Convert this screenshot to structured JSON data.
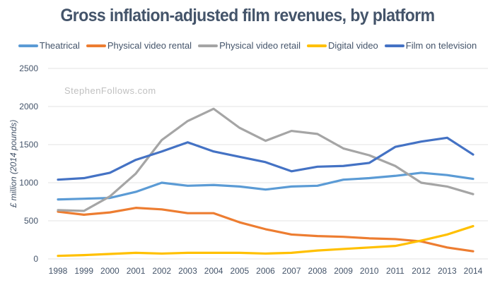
{
  "chart_data": {
    "type": "line",
    "title": "Gross inflation-adjusted film revenues, by platform",
    "xlabel": "",
    "ylabel": "£ million (2014 pounds)",
    "watermark": "StephenFollows.com",
    "ylim": [
      0,
      2500
    ],
    "yticks": [
      0,
      500,
      1000,
      1500,
      2000,
      2500
    ],
    "grid": true,
    "legend_position": "top",
    "x": [
      "1998",
      "1999",
      "2000",
      "2001",
      "2002",
      "2003",
      "2004",
      "2005",
      "2006",
      "2007",
      "2008",
      "2009",
      "2010",
      "2011",
      "2012",
      "2013",
      "2014"
    ],
    "series": [
      {
        "name": "Theatrical",
        "color": "#5b9bd5",
        "values": [
          780,
          790,
          800,
          880,
          1000,
          960,
          970,
          950,
          910,
          950,
          960,
          1040,
          1060,
          1090,
          1130,
          1100,
          1050
        ]
      },
      {
        "name": "Physical video rental",
        "color": "#ed7d31",
        "values": [
          620,
          580,
          610,
          670,
          650,
          600,
          600,
          480,
          390,
          320,
          300,
          290,
          270,
          260,
          230,
          150,
          100
        ]
      },
      {
        "name": "Physical video retail",
        "color": "#a5a5a5",
        "values": [
          640,
          630,
          820,
          1120,
          1560,
          1810,
          1970,
          1720,
          1550,
          1680,
          1640,
          1450,
          1360,
          1220,
          1000,
          950,
          850
        ]
      },
      {
        "name": "Digital video",
        "color": "#ffc000",
        "values": [
          40,
          50,
          65,
          80,
          70,
          80,
          80,
          80,
          70,
          80,
          110,
          130,
          150,
          170,
          240,
          320,
          430
        ]
      },
      {
        "name": "Film on television",
        "color": "#4472c4",
        "values": [
          1040,
          1060,
          1130,
          1300,
          1410,
          1530,
          1410,
          1340,
          1270,
          1150,
          1210,
          1220,
          1260,
          1470,
          1540,
          1590,
          1370
        ]
      }
    ]
  }
}
